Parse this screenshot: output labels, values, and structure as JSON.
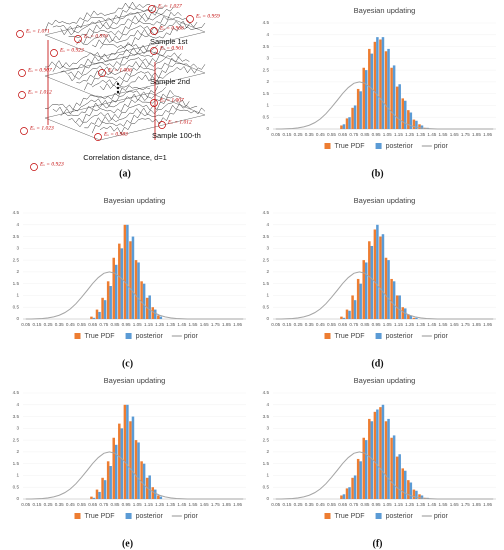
{
  "diagram": {
    "panel": "(a)",
    "caption": "Correlation distance, d=1",
    "samples": [
      "Sample 1st",
      "Sample 2nd",
      "Sample 100-th"
    ],
    "labels": [
      "Eₓ = 1.027",
      "Eₓ = 0.959",
      "Eₓ = 1.071",
      "Eₓ = 0.976",
      "Eₓ = 0.966",
      "Eₓ = 0.923",
      "Eₓ = 0.961",
      "Eₓ = 0.907",
      "Eₓ = 1.006",
      "Eₓ = 1.012",
      "Eₓ = 1.007",
      "Eₓ = 1.023",
      "Eₓ = 0.983",
      "Eₓ = 1.012",
      "Eₓ = 0.923"
    ]
  },
  "chart_data": [
    {
      "type": "bar",
      "panel": "(b)",
      "title": "Bayesian updating",
      "categories": [
        "0.05",
        null,
        "0.15",
        null,
        "0.25",
        null,
        "0.35",
        null,
        "0.45",
        null,
        "0.55",
        null,
        "0.65",
        null,
        "0.75",
        null,
        "0.85",
        null,
        "0.95",
        null,
        "1.05",
        null,
        "1.15",
        null,
        "1.25",
        null,
        "1.35",
        null,
        "1.45",
        null,
        "1.55",
        null,
        "1.65",
        null,
        "1.75",
        null,
        "1.85",
        null,
        "1.95",
        null
      ],
      "ylim": [
        0,
        4.5
      ],
      "yticks": [
        0,
        0.5,
        1,
        1.5,
        2,
        2.5,
        3,
        3.5,
        4,
        4.5
      ],
      "series": [
        {
          "name": "True PDF",
          "type": "bar",
          "color": "#ed7d31",
          "values": [
            0,
            0,
            0,
            0,
            0,
            0,
            0,
            0,
            0,
            0,
            0,
            0,
            0.15,
            0.45,
            0.9,
            1.7,
            2.6,
            3.4,
            3.7,
            3.8,
            3.3,
            2.6,
            1.8,
            1.3,
            0.8,
            0.4,
            0.2,
            0.05,
            0,
            0,
            0,
            0,
            0,
            0,
            0,
            0,
            0,
            0,
            0,
            0
          ]
        },
        {
          "name": "posterior",
          "type": "bar",
          "color": "#5b9bd5",
          "values": [
            0,
            0,
            0,
            0,
            0,
            0,
            0,
            0,
            0,
            0,
            0,
            0,
            0.2,
            0.5,
            1.0,
            1.6,
            2.5,
            3.2,
            3.9,
            3.9,
            3.4,
            2.7,
            1.9,
            1.2,
            0.7,
            0.35,
            0.15,
            0.05,
            0,
            0,
            0,
            0,
            0,
            0,
            0,
            0,
            0,
            0,
            0,
            0
          ]
        },
        {
          "name": "prior",
          "type": "line",
          "color": "#a5a5a5",
          "values": [
            0,
            0,
            0.01,
            0.02,
            0.05,
            0.09,
            0.16,
            0.27,
            0.43,
            0.65,
            0.92,
            1.21,
            1.51,
            1.76,
            1.94,
            2,
            1.94,
            1.76,
            1.51,
            1.21,
            0.92,
            0.65,
            0.43,
            0.27,
            0.16,
            0.09,
            0.05,
            0.02,
            0.01,
            0,
            0,
            0,
            0,
            0,
            0,
            0,
            0,
            0,
            0,
            0
          ]
        }
      ]
    },
    {
      "type": "bar",
      "panel": "(c)",
      "title": "Bayesian updating",
      "categories": [
        "0.05",
        null,
        "0.15",
        null,
        "0.25",
        null,
        "0.35",
        null,
        "0.45",
        null,
        "0.55",
        null,
        "0.65",
        null,
        "0.75",
        null,
        "0.85",
        null,
        "0.95",
        null,
        "1.05",
        null,
        "1.15",
        null,
        "1.25",
        null,
        "1.35",
        null,
        "1.45",
        null,
        "1.55",
        null,
        "1.65",
        null,
        "1.75",
        null,
        "1.85",
        null,
        "1.95",
        null
      ],
      "ylim": [
        0,
        4.5
      ],
      "yticks": [
        0,
        0.5,
        1,
        1.5,
        2,
        2.5,
        3,
        3.5,
        4,
        4.5
      ],
      "series": [
        {
          "name": "True PDF",
          "type": "bar",
          "color": "#ed7d31",
          "values": [
            0,
            0,
            0,
            0,
            0,
            0,
            0,
            0,
            0,
            0,
            0,
            0,
            0.1,
            0.4,
            0.9,
            1.6,
            2.6,
            3.2,
            4.0,
            3.3,
            2.5,
            1.6,
            0.9,
            0.5,
            0.15,
            0,
            0,
            0,
            0,
            0,
            0,
            0,
            0,
            0,
            0,
            0,
            0,
            0,
            0,
            0
          ]
        },
        {
          "name": "posterior",
          "type": "bar",
          "color": "#5b9bd5",
          "values": [
            0,
            0,
            0,
            0,
            0,
            0,
            0,
            0,
            0,
            0,
            0,
            0,
            0.05,
            0.3,
            0.8,
            1.4,
            2.3,
            3.0,
            4.0,
            3.5,
            2.4,
            1.5,
            1.0,
            0.4,
            0.1,
            0,
            0,
            0,
            0,
            0,
            0,
            0,
            0,
            0,
            0,
            0,
            0,
            0,
            0,
            0
          ]
        },
        {
          "name": "prior",
          "type": "line",
          "color": "#a5a5a5",
          "values": [
            0,
            0,
            0.01,
            0.02,
            0.05,
            0.09,
            0.16,
            0.27,
            0.43,
            0.65,
            0.92,
            1.21,
            1.51,
            1.76,
            1.94,
            2,
            1.94,
            1.76,
            1.51,
            1.21,
            0.92,
            0.65,
            0.43,
            0.27,
            0.16,
            0.09,
            0.05,
            0.02,
            0.01,
            0,
            0,
            0,
            0,
            0,
            0,
            0,
            0,
            0,
            0,
            0
          ]
        }
      ]
    },
    {
      "type": "bar",
      "panel": "(d)",
      "title": "Bayesian updating",
      "categories": [
        "0.05",
        null,
        "0.15",
        null,
        "0.25",
        null,
        "0.35",
        null,
        "0.45",
        null,
        "0.55",
        null,
        "0.65",
        null,
        "0.75",
        null,
        "0.85",
        null,
        "0.95",
        null,
        "1.05",
        null,
        "1.15",
        null,
        "1.25",
        null,
        "1.35",
        null,
        "1.45",
        null,
        "1.55",
        null,
        "1.65",
        null,
        "1.75",
        null,
        "1.85",
        null,
        "1.95",
        null
      ],
      "ylim": [
        0,
        4.5
      ],
      "yticks": [
        0,
        0.5,
        1,
        1.5,
        2,
        2.5,
        3,
        3.5,
        4,
        4.5
      ],
      "series": [
        {
          "name": "True PDF",
          "type": "bar",
          "color": "#ed7d31",
          "values": [
            0,
            0,
            0,
            0,
            0,
            0,
            0,
            0,
            0,
            0,
            0,
            0,
            0.1,
            0.4,
            1.0,
            1.7,
            2.5,
            3.3,
            3.8,
            3.5,
            2.6,
            1.7,
            1.0,
            0.5,
            0.2,
            0.05,
            0,
            0,
            0,
            0,
            0,
            0,
            0,
            0,
            0,
            0,
            0,
            0,
            0,
            0
          ]
        },
        {
          "name": "posterior",
          "type": "bar",
          "color": "#5b9bd5",
          "values": [
            0,
            0,
            0,
            0,
            0,
            0,
            0,
            0,
            0,
            0,
            0,
            0,
            0.05,
            0.35,
            0.8,
            1.5,
            2.4,
            3.1,
            4.0,
            3.6,
            2.5,
            1.6,
            1.0,
            0.45,
            0.15,
            0.05,
            0,
            0,
            0,
            0,
            0,
            0,
            0,
            0,
            0,
            0,
            0,
            0,
            0,
            0
          ]
        },
        {
          "name": "prior",
          "type": "line",
          "color": "#a5a5a5",
          "values": [
            0,
            0,
            0.01,
            0.02,
            0.05,
            0.09,
            0.16,
            0.27,
            0.43,
            0.65,
            0.92,
            1.21,
            1.51,
            1.76,
            1.94,
            2,
            1.94,
            1.76,
            1.51,
            1.21,
            0.92,
            0.65,
            0.43,
            0.27,
            0.16,
            0.09,
            0.05,
            0.02,
            0.01,
            0,
            0,
            0,
            0,
            0,
            0,
            0,
            0,
            0,
            0,
            0
          ]
        }
      ]
    },
    {
      "type": "bar",
      "panel": "(e)",
      "title": "Bayesian updating",
      "categories": [
        "0.05",
        null,
        "0.15",
        null,
        "0.25",
        null,
        "0.35",
        null,
        "0.45",
        null,
        "0.55",
        null,
        "0.65",
        null,
        "0.75",
        null,
        "0.85",
        null,
        "0.95",
        null,
        "1.05",
        null,
        "1.15",
        null,
        "1.25",
        null,
        "1.35",
        null,
        "1.45",
        null,
        "1.55",
        null,
        "1.65",
        null,
        "1.75",
        null,
        "1.85",
        null,
        "1.95",
        null
      ],
      "ylim": [
        0,
        4.5
      ],
      "yticks": [
        0,
        0.5,
        1,
        1.5,
        2,
        2.5,
        3,
        3.5,
        4,
        4.5
      ],
      "series": [
        {
          "name": "True PDF",
          "type": "bar",
          "color": "#ed7d31",
          "values": [
            0,
            0,
            0,
            0,
            0,
            0,
            0,
            0,
            0,
            0,
            0,
            0,
            0.1,
            0.4,
            0.9,
            1.6,
            2.6,
            3.2,
            4.0,
            3.3,
            2.5,
            1.6,
            0.9,
            0.5,
            0.15,
            0,
            0,
            0,
            0,
            0,
            0,
            0,
            0,
            0,
            0,
            0,
            0,
            0,
            0,
            0
          ]
        },
        {
          "name": "posterior",
          "type": "bar",
          "color": "#5b9bd5",
          "values": [
            0,
            0,
            0,
            0,
            0,
            0,
            0,
            0,
            0,
            0,
            0,
            0,
            0.05,
            0.3,
            0.8,
            1.4,
            2.3,
            3.0,
            4.0,
            3.5,
            2.4,
            1.5,
            1.0,
            0.4,
            0.1,
            0,
            0,
            0,
            0,
            0,
            0,
            0,
            0,
            0,
            0,
            0,
            0,
            0,
            0,
            0
          ]
        },
        {
          "name": "prior",
          "type": "line",
          "color": "#a5a5a5",
          "values": [
            0,
            0,
            0.01,
            0.02,
            0.05,
            0.09,
            0.16,
            0.27,
            0.43,
            0.65,
            0.92,
            1.21,
            1.51,
            1.76,
            1.94,
            2,
            1.94,
            1.76,
            1.51,
            1.21,
            0.92,
            0.65,
            0.43,
            0.27,
            0.16,
            0.09,
            0.05,
            0.02,
            0.01,
            0,
            0,
            0,
            0,
            0,
            0,
            0,
            0,
            0,
            0,
            0
          ]
        }
      ]
    },
    {
      "type": "bar",
      "panel": "(f)",
      "title": "Bayesian updating",
      "categories": [
        "0.05",
        null,
        "0.15",
        null,
        "0.25",
        null,
        "0.35",
        null,
        "0.45",
        null,
        "0.55",
        null,
        "0.65",
        null,
        "0.75",
        null,
        "0.85",
        null,
        "0.95",
        null,
        "1.05",
        null,
        "1.15",
        null,
        "1.25",
        null,
        "1.35",
        null,
        "1.45",
        null,
        "1.55",
        null,
        "1.65",
        null,
        "1.75",
        null,
        "1.85",
        null,
        "1.95",
        null
      ],
      "ylim": [
        0,
        4.5
      ],
      "yticks": [
        0,
        0.5,
        1,
        1.5,
        2,
        2.5,
        3,
        3.5,
        4,
        4.5
      ],
      "series": [
        {
          "name": "True PDF",
          "type": "bar",
          "color": "#ed7d31",
          "values": [
            0,
            0,
            0,
            0,
            0,
            0,
            0,
            0,
            0,
            0,
            0,
            0,
            0.15,
            0.45,
            0.9,
            1.7,
            2.6,
            3.4,
            3.7,
            3.9,
            3.3,
            2.6,
            1.8,
            1.3,
            0.8,
            0.4,
            0.2,
            0.05,
            0,
            0,
            0,
            0,
            0,
            0,
            0,
            0,
            0,
            0,
            0,
            0
          ]
        },
        {
          "name": "posterior",
          "type": "bar",
          "color": "#5b9bd5",
          "values": [
            0,
            0,
            0,
            0,
            0,
            0,
            0,
            0,
            0,
            0,
            0,
            0,
            0.2,
            0.5,
            1.0,
            1.6,
            2.5,
            3.3,
            3.8,
            4.0,
            3.4,
            2.7,
            1.9,
            1.2,
            0.7,
            0.35,
            0.15,
            0.05,
            0,
            0,
            0,
            0,
            0,
            0,
            0,
            0,
            0,
            0,
            0,
            0
          ]
        },
        {
          "name": "prior",
          "type": "line",
          "color": "#a5a5a5",
          "values": [
            0,
            0,
            0.01,
            0.02,
            0.05,
            0.09,
            0.16,
            0.27,
            0.43,
            0.65,
            0.92,
            1.21,
            1.51,
            1.76,
            1.94,
            2,
            1.94,
            1.76,
            1.51,
            1.21,
            0.92,
            0.65,
            0.43,
            0.27,
            0.16,
            0.09,
            0.05,
            0.02,
            0.01,
            0,
            0,
            0,
            0,
            0,
            0,
            0,
            0,
            0,
            0,
            0
          ]
        }
      ]
    }
  ]
}
